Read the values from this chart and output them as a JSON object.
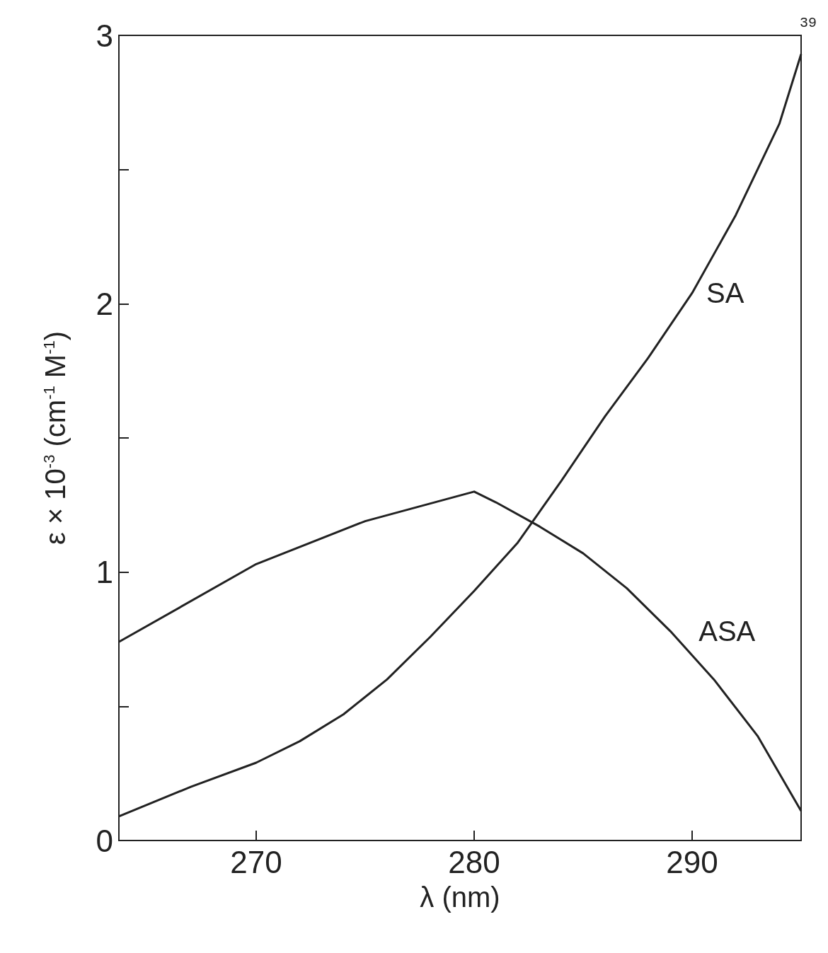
{
  "chart_data": {
    "type": "line",
    "xlabel": "λ (nm)",
    "ylabel": "ε × 10$^{-3}$ (cm$^{-1}$ M$^{-1}$)",
    "annotations": [
      "39"
    ],
    "xlim": [
      263.7,
      295
    ],
    "xticks": [
      270,
      280,
      290
    ],
    "ylim": [
      0,
      3
    ],
    "yticks": [
      0,
      {
        "value": 0.5,
        "label": null
      },
      1,
      {
        "value": 1.5,
        "label": null
      },
      2,
      {
        "value": 2.5,
        "label": null
      },
      3
    ],
    "grid": false,
    "legend": false,
    "marker": "none",
    "line_style": "solid",
    "series": [
      {
        "name": "SA",
        "color": "#222222",
        "x": [
          263.7,
          267,
          270,
          272,
          274,
          276,
          278,
          280,
          282,
          284,
          286,
          288,
          290,
          292,
          294,
          295
        ],
        "values": [
          0.09,
          0.2,
          0.29,
          0.37,
          0.47,
          0.6,
          0.76,
          0.93,
          1.11,
          1.34,
          1.58,
          1.8,
          2.04,
          2.33,
          2.67,
          2.93
        ]
      },
      {
        "name": "ASA",
        "color": "#222222",
        "x": [
          263.7,
          270,
          275,
          280,
          281,
          283,
          285,
          287,
          289,
          291,
          293,
          295
        ],
        "values": [
          0.74,
          1.03,
          1.19,
          1.3,
          1.26,
          1.17,
          1.07,
          0.94,
          0.78,
          0.6,
          0.39,
          0.11
        ]
      }
    ]
  }
}
